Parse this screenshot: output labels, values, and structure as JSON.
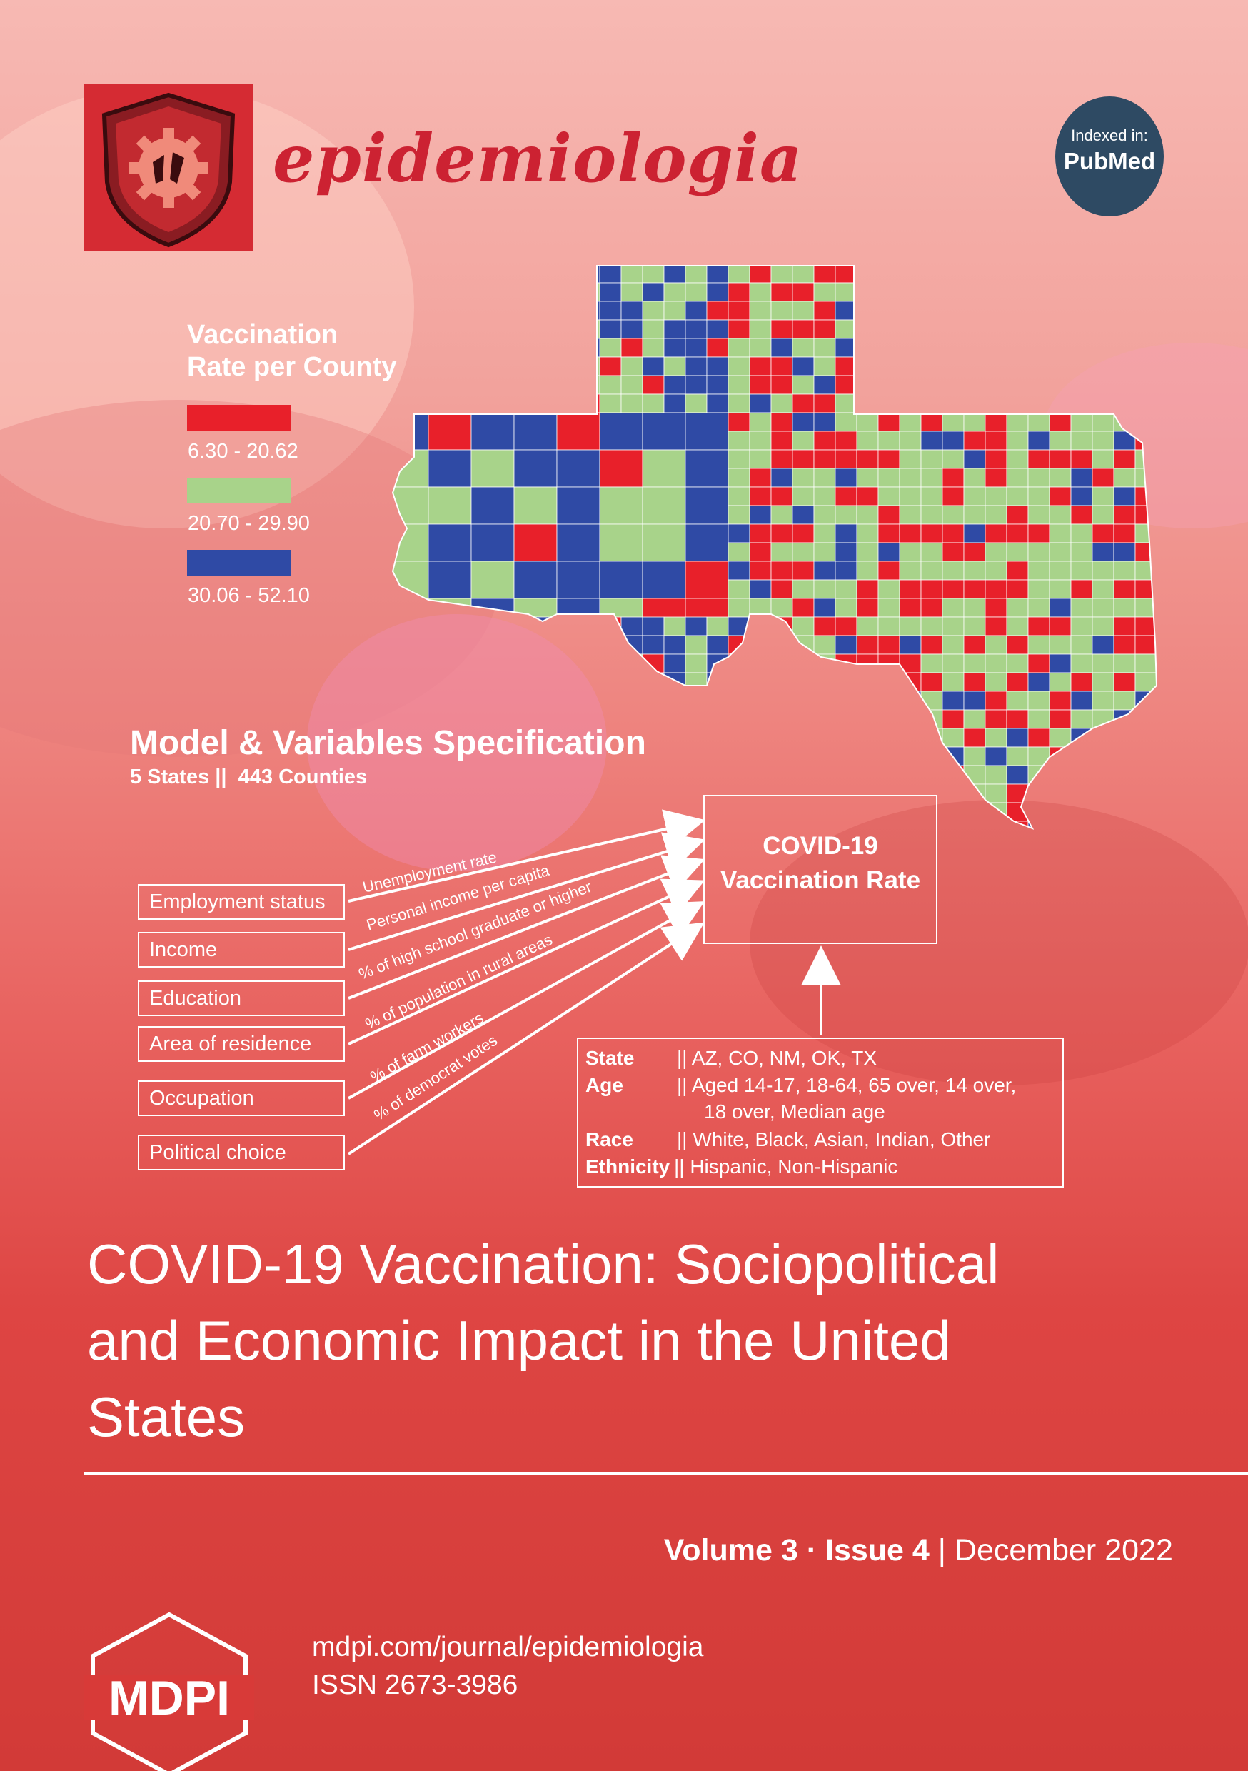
{
  "journal": {
    "name": "epidemiologia",
    "indexed_label": "Indexed in:",
    "indexed_db": "PubMed"
  },
  "legend": {
    "title_line1": "Vaccination",
    "title_line2": "Rate per County",
    "items": [
      {
        "label": "6.30 - 20.62",
        "color": "#e8202a"
      },
      {
        "label": "20.70 - 29.90",
        "color": "#a8d38a"
      },
      {
        "label": "30.06 - 52.10",
        "color": "#2f4aa5"
      }
    ]
  },
  "model": {
    "title": "Model & Variables Specification",
    "subtitle": "5 States ||  443 Counties",
    "target_line1": "COVID-19",
    "target_line2": "Vaccination Rate",
    "variables": [
      {
        "label": "Employment status",
        "measure": "Unemployment rate"
      },
      {
        "label": "Income",
        "measure": "Personal income per capita"
      },
      {
        "label": "Education",
        "measure": "% of high school graduate or higher"
      },
      {
        "label": "Area of residence",
        "measure": "% of population in rural areas"
      },
      {
        "label": "Occupation",
        "measure": "% of farm workers"
      },
      {
        "label": "Political choice",
        "measure": "% of democrat votes"
      }
    ],
    "controls": {
      "state_key": "State",
      "state_val": "|| AZ, CO, NM, OK, TX",
      "age_key": "Age",
      "age_val": "|| Aged 14-17, 18-64, 65 over, 14 over,",
      "age_val2": "18 over, Median age",
      "race_key": "Race",
      "race_val": "|| White, Black, Asian, Indian, Other",
      "eth_key": "Ethnicity",
      "eth_val": "|| Hispanic, Non-Hispanic"
    }
  },
  "article": {
    "title_line1": "COVID-19 Vaccination: Sociopolitical",
    "title_line2": "and Economic Impact in the United",
    "title_line3": "States"
  },
  "issue": {
    "volume": "Volume 3",
    "separator": " · ",
    "issue": "Issue 4",
    "divider": " | ",
    "date": "December 2022"
  },
  "publisher": {
    "logo_text": "MDPI",
    "url": "mdpi.com/journal/epidemiologia",
    "issn": "ISSN 2673-3986"
  },
  "colors": {
    "low": "#e8202a",
    "mid": "#a8d38a",
    "high": "#2f4aa5",
    "journal_red": "#d12a35",
    "badge": "#2e4a63"
  }
}
